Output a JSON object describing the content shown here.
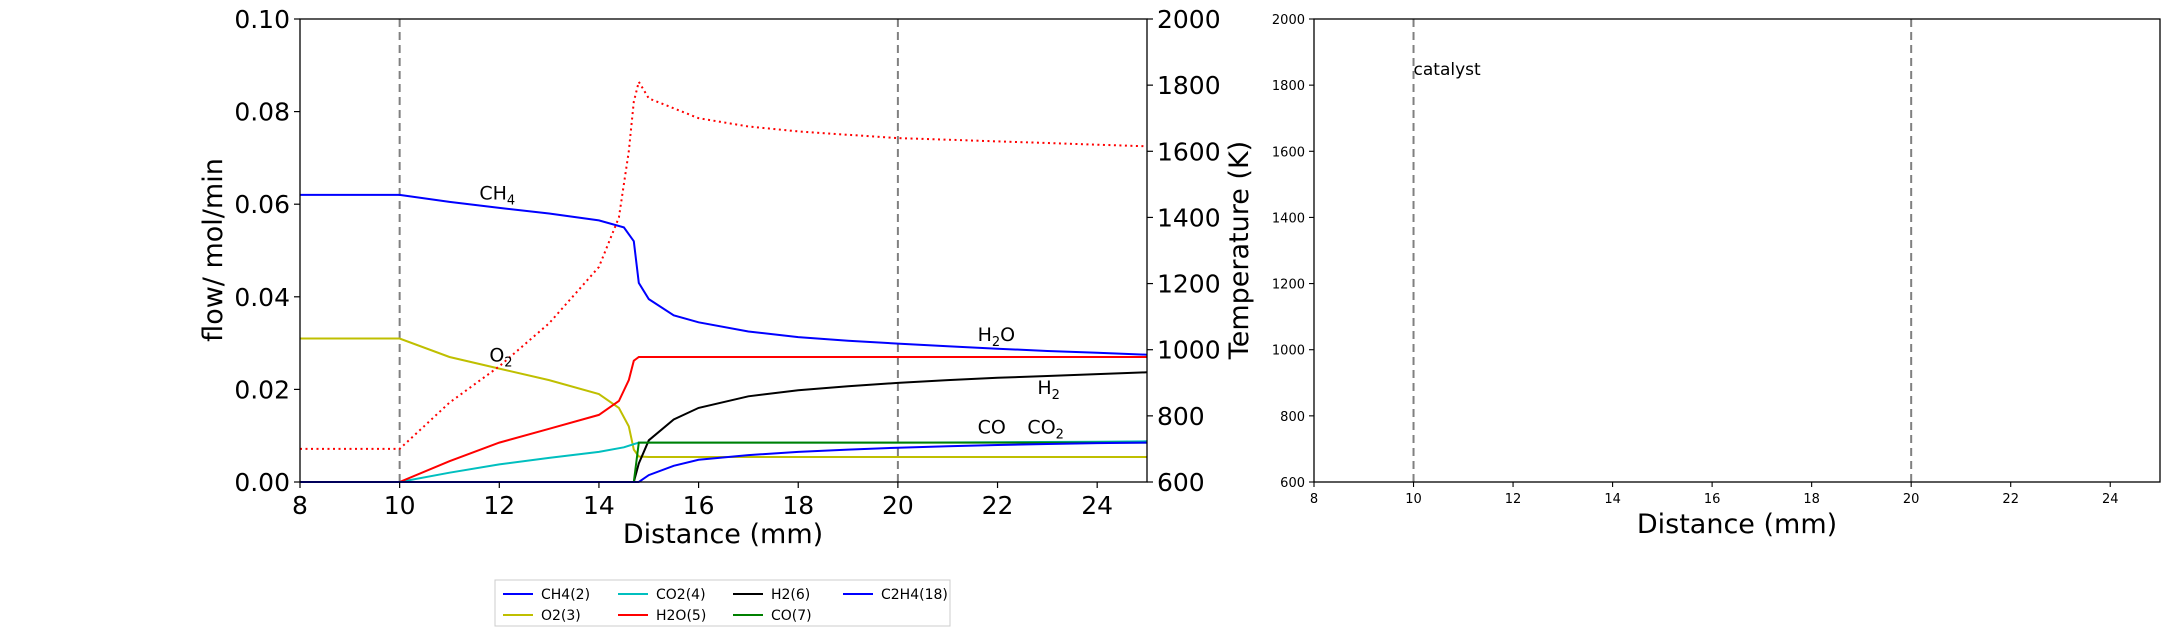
{
  "chart_data": [
    {
      "type": "line",
      "xlabel": "Distance (mm)",
      "ylabel": "flow/ mol/min",
      "ylabel_right": "Temperature (K)",
      "xlim": [
        8,
        25
      ],
      "ylim": [
        0,
        0.1
      ],
      "ylim_right": [
        600,
        2000
      ],
      "xticks": [
        "8",
        "10",
        "12",
        "14",
        "16",
        "18",
        "20",
        "22",
        "24"
      ],
      "yticks": [
        "0.00",
        "0.02",
        "0.04",
        "0.06",
        "0.08",
        "0.10"
      ],
      "yticks_right": [
        "600",
        "800",
        "1000",
        "1200",
        "1400",
        "1600",
        "1800",
        "2000"
      ],
      "vlines": [
        10,
        20
      ],
      "series": [
        {
          "name": "CH4(2)",
          "color": "#0000ff",
          "x": [
            8,
            10,
            11,
            12,
            13,
            14,
            14.5,
            14.7,
            14.8,
            15,
            15.5,
            16,
            17,
            18,
            19,
            20,
            21,
            22,
            23,
            24,
            25
          ],
          "y": [
            0.062,
            0.062,
            0.0605,
            0.0592,
            0.058,
            0.0565,
            0.055,
            0.052,
            0.043,
            0.0395,
            0.036,
            0.0345,
            0.0325,
            0.0313,
            0.0305,
            0.0299,
            0.0293,
            0.0288,
            0.0283,
            0.0279,
            0.0275
          ]
        },
        {
          "name": "O2(3)",
          "color": "#bfbf00",
          "x": [
            8,
            10,
            11,
            12,
            13,
            14,
            14.4,
            14.6,
            14.7,
            14.8,
            15,
            16,
            18,
            20,
            22,
            24,
            25
          ],
          "y": [
            0.031,
            0.031,
            0.027,
            0.0245,
            0.022,
            0.019,
            0.016,
            0.012,
            0.007,
            0.0055,
            0.0054,
            0.0054,
            0.0054,
            0.0054,
            0.0054,
            0.0054,
            0.0054
          ]
        },
        {
          "name": "CO2(4)",
          "color": "#00bfbf",
          "x": [
            8,
            10,
            11,
            12,
            13,
            14,
            14.5,
            14.8,
            15,
            16,
            18,
            20,
            22,
            24,
            25
          ],
          "y": [
            0,
            0,
            0.002,
            0.0038,
            0.0052,
            0.0065,
            0.0075,
            0.0085,
            0.0085,
            0.0085,
            0.0085,
            0.0085,
            0.0086,
            0.0087,
            0.0088
          ]
        },
        {
          "name": "H2O(5)",
          "color": "#ff0000",
          "x": [
            8,
            10,
            11,
            12,
            13,
            14,
            14.4,
            14.6,
            14.7,
            14.8,
            15,
            16,
            18,
            20,
            22,
            24,
            25
          ],
          "y": [
            0,
            0,
            0.0045,
            0.0085,
            0.0115,
            0.0145,
            0.0175,
            0.022,
            0.0262,
            0.027,
            0.027,
            0.027,
            0.027,
            0.027,
            0.027,
            0.027,
            0.027
          ]
        },
        {
          "name": "H2(6)",
          "color": "#000000",
          "x": [
            8,
            14.7,
            14.8,
            15,
            15.5,
            16,
            17,
            18,
            19,
            20,
            21,
            22,
            23,
            24,
            25
          ],
          "y": [
            0,
            0,
            0.004,
            0.009,
            0.0135,
            0.016,
            0.0185,
            0.0198,
            0.0207,
            0.0214,
            0.022,
            0.0225,
            0.0229,
            0.0233,
            0.0237
          ]
        },
        {
          "name": "CO(7)",
          "color": "#008000",
          "x": [
            8,
            14.7,
            14.8,
            15,
            16,
            18,
            20,
            22,
            24,
            25
          ],
          "y": [
            0,
            0,
            0.0085,
            0.0085,
            0.0085,
            0.0085,
            0.0085,
            0.0085,
            0.0085,
            0.0085
          ]
        },
        {
          "name": "C2H4(18)",
          "color": "#0000ff",
          "x": [
            8,
            14.8,
            15,
            15.5,
            16,
            17,
            18,
            19,
            20,
            21,
            22,
            23,
            24,
            25
          ],
          "y": [
            0,
            0,
            0.0015,
            0.0035,
            0.0048,
            0.0058,
            0.0065,
            0.007,
            0.0074,
            0.0077,
            0.008,
            0.0082,
            0.0084,
            0.0085
          ]
        }
      ],
      "temperature": {
        "color": "#ff0000",
        "style": "dotted",
        "x": [
          8,
          10,
          10.5,
          11,
          12,
          13,
          14,
          14.4,
          14.6,
          14.7,
          14.8,
          15,
          16,
          17,
          18,
          19,
          20,
          21,
          22,
          23,
          24,
          25
        ],
        "y": [
          700,
          700,
          770,
          840,
          950,
          1080,
          1250,
          1400,
          1600,
          1750,
          1810,
          1760,
          1700,
          1675,
          1660,
          1650,
          1640,
          1635,
          1630,
          1625,
          1620,
          1615
        ]
      },
      "annotations": [
        {
          "text": "CH",
          "sub": "4",
          "x": 11.6,
          "y": 0.061,
          "color": "#0000ff"
        },
        {
          "text": "O",
          "sub": "2",
          "x": 11.8,
          "y": 0.026,
          "color": "#bfbf00"
        },
        {
          "text": "H",
          "sub": "2",
          "tail": "O",
          "x": 21.6,
          "y": 0.0305,
          "color": "#ff0000"
        },
        {
          "text": "H",
          "sub": "2",
          "x": 22.8,
          "y": 0.019,
          "color": "#000000"
        },
        {
          "text": "CO",
          "x": 21.6,
          "y": 0.0105,
          "color": "#008000"
        },
        {
          "text": "CO",
          "sub": "2",
          "x": 22.6,
          "y": 0.0105,
          "color": "#00bfbf"
        }
      ],
      "legend_placement": "bottom"
    },
    {
      "type": "line",
      "xlabel": "Distance (mm)",
      "xlim": [
        8,
        25
      ],
      "ylim": [
        600,
        2000
      ],
      "xticks": [
        "8",
        "10",
        "12",
        "14",
        "16",
        "18",
        "20",
        "22",
        "24"
      ],
      "yticks": [
        "600",
        "800",
        "1000",
        "1200",
        "1400",
        "1600",
        "1800",
        "2000"
      ],
      "vlines": [
        10,
        20
      ],
      "annotations": [
        {
          "text": "catalyst",
          "x": 10,
          "y": 1830
        }
      ],
      "series": []
    }
  ]
}
